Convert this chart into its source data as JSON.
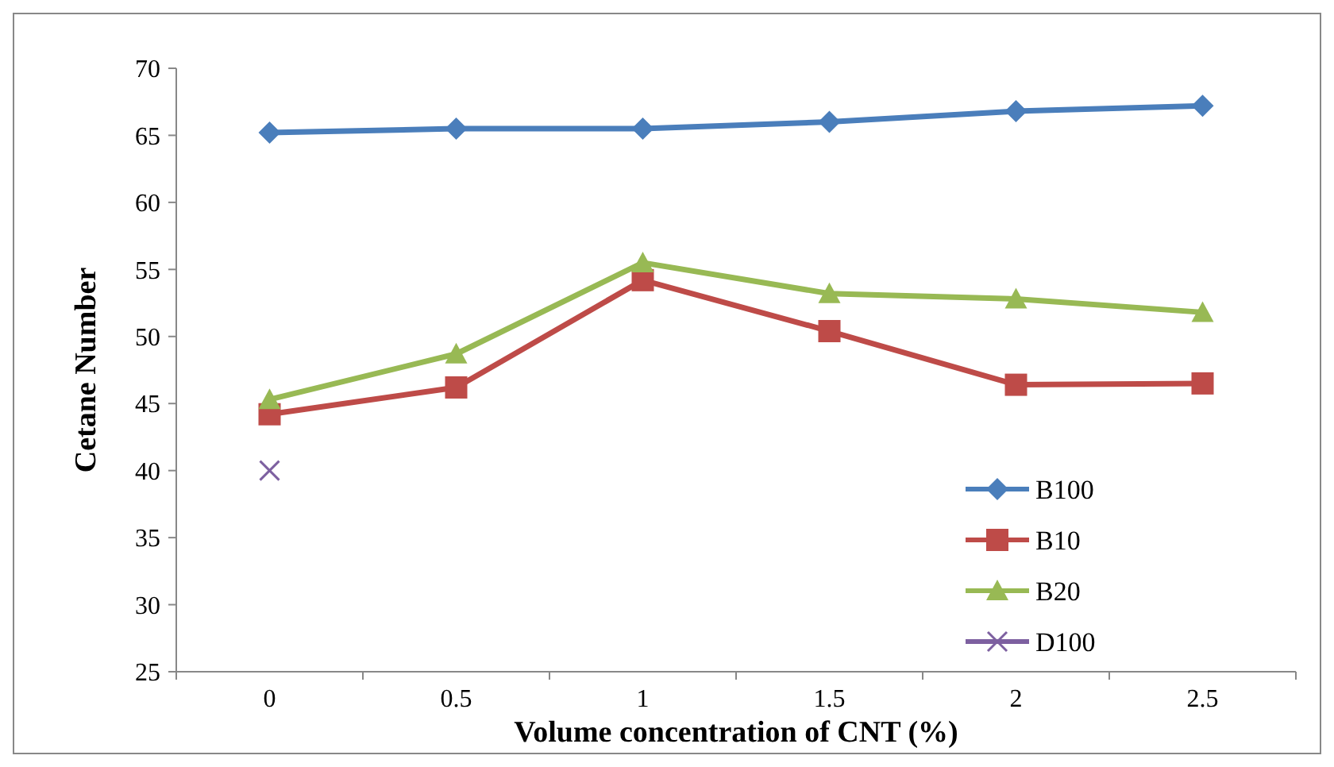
{
  "chart_data": {
    "type": "line",
    "xlabel": "Volume concentration  of CNT (%)",
    "ylabel": "Cetane Number",
    "categories": [
      "0",
      "0.5",
      "1",
      "1.5",
      "2",
      "2.5"
    ],
    "ylim": [
      25,
      70
    ],
    "yticks": [
      25,
      30,
      35,
      40,
      45,
      50,
      55,
      60,
      65,
      70
    ],
    "grid": false,
    "legend": "right",
    "series": [
      {
        "name": "B100",
        "color": "#4a7ebb",
        "marker": "diamond",
        "values": [
          65.2,
          65.5,
          65.5,
          66.0,
          66.8,
          67.2
        ]
      },
      {
        "name": "B10",
        "color": "#be4b48",
        "marker": "square",
        "values": [
          44.2,
          46.2,
          54.2,
          50.4,
          46.4,
          46.5
        ]
      },
      {
        "name": "B20",
        "color": "#98b954",
        "marker": "triangle",
        "values": [
          45.3,
          48.7,
          55.5,
          53.2,
          52.8,
          51.8
        ]
      },
      {
        "name": "D100",
        "color": "#7d60a0",
        "marker": "cross",
        "values": [
          40,
          null,
          null,
          null,
          null,
          null
        ]
      }
    ]
  }
}
